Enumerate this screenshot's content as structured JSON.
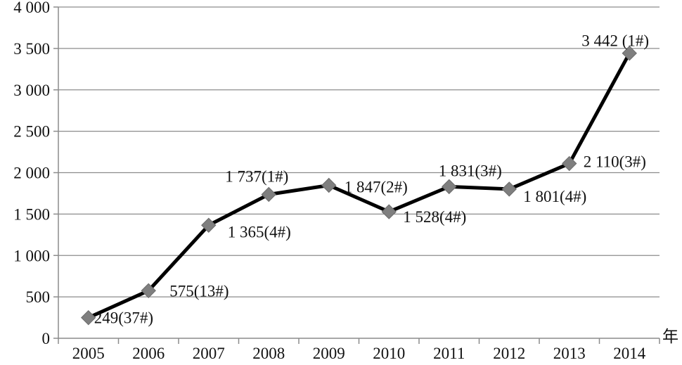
{
  "chart_data": {
    "type": "line",
    "categories": [
      "2005",
      "2006",
      "2007",
      "2008",
      "2009",
      "2010",
      "2011",
      "2012",
      "2013",
      "2014"
    ],
    "series": [
      {
        "values": [
          249,
          575,
          1365,
          1737,
          1847,
          1528,
          1831,
          1801,
          2110,
          3442
        ],
        "labels": [
          "249(37#)",
          "575(13#)",
          "1 365(4#)",
          "1 737(1#)",
          "1 847(2#)",
          "1 528(4#)",
          "1 831(3#)",
          "1 801(4#)",
          "2 110(3#)",
          "3 442 (1#)"
        ]
      }
    ],
    "y_ticks": [
      0,
      500,
      1000,
      1500,
      2000,
      2500,
      3000,
      3500,
      4000
    ],
    "y_tick_labels": [
      "0",
      "500",
      "1 000",
      "1 500",
      "2 000",
      "2 500",
      "3 000",
      "3 500",
      "4 000"
    ],
    "ylim": [
      0,
      4000
    ],
    "x_unit": "年",
    "title": "",
    "xlabel": "",
    "ylabel": "",
    "grid": true,
    "colors": {
      "line": "#000000",
      "marker": "#7f7f7f",
      "grid": "#8c8c8c"
    }
  }
}
